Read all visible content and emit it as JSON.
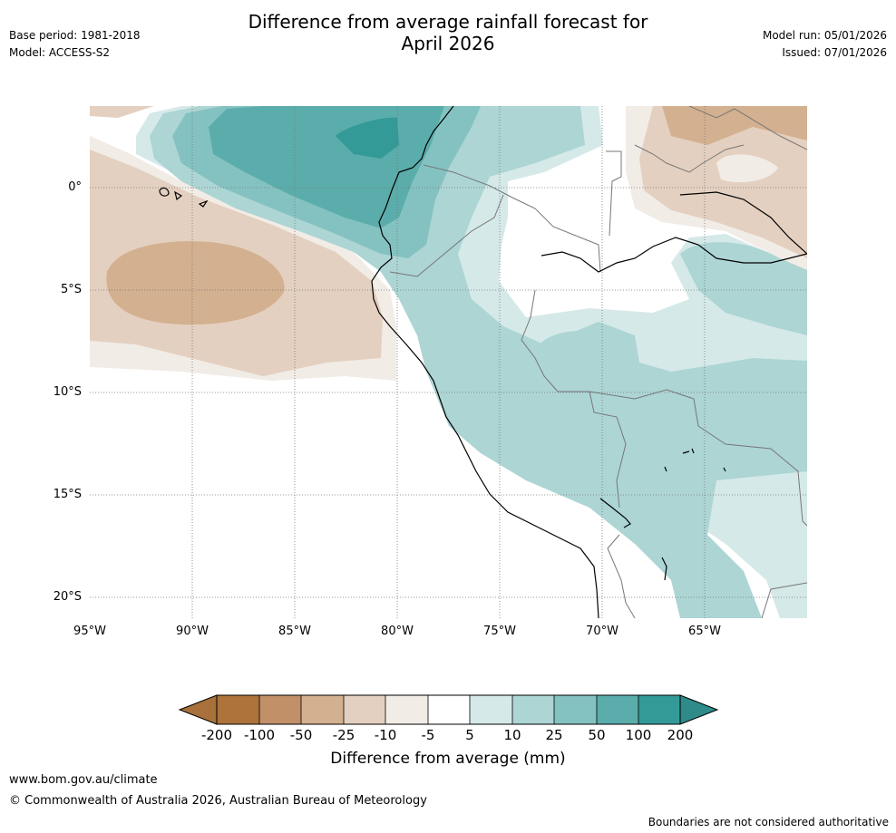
{
  "header": {
    "title_line1": "Difference from average rainfall forecast for",
    "title_line2": "April 2026",
    "base_period": "Base period: 1981-2018",
    "model": "Model: ACCESS-S2",
    "model_run": "Model run: 05/01/2026",
    "issued": "Issued: 07/01/2026"
  },
  "map": {
    "lat_labels": [
      "0°",
      "5°S",
      "10°S",
      "15°S",
      "20°S"
    ],
    "lon_labels": [
      "95°W",
      "90°W",
      "85°W",
      "80°W",
      "75°W",
      "70°W",
      "65°W"
    ]
  },
  "legend": {
    "title": "Difference from average (mm)",
    "ticks": [
      "-200",
      "-100",
      "-50",
      "-25",
      "-10",
      "-5",
      "5",
      "10",
      "25",
      "50",
      "100",
      "200"
    ],
    "colors": [
      "#a8703a",
      "#ad733b",
      "#c19068",
      "#d3b08f",
      "#e4d0c0",
      "#f1ece6",
      "#ffffff",
      "#d5e9e8",
      "#acd5d4",
      "#84c2c1",
      "#5aadab",
      "#339a98",
      "#2e8b89"
    ]
  },
  "footer": {
    "url": "www.bom.gov.au/climate",
    "copyright": "© Commonwealth of Australia 2026, Australian Bureau of Meteorology",
    "disclaimer": "Boundaries are not considered authoritative"
  }
}
